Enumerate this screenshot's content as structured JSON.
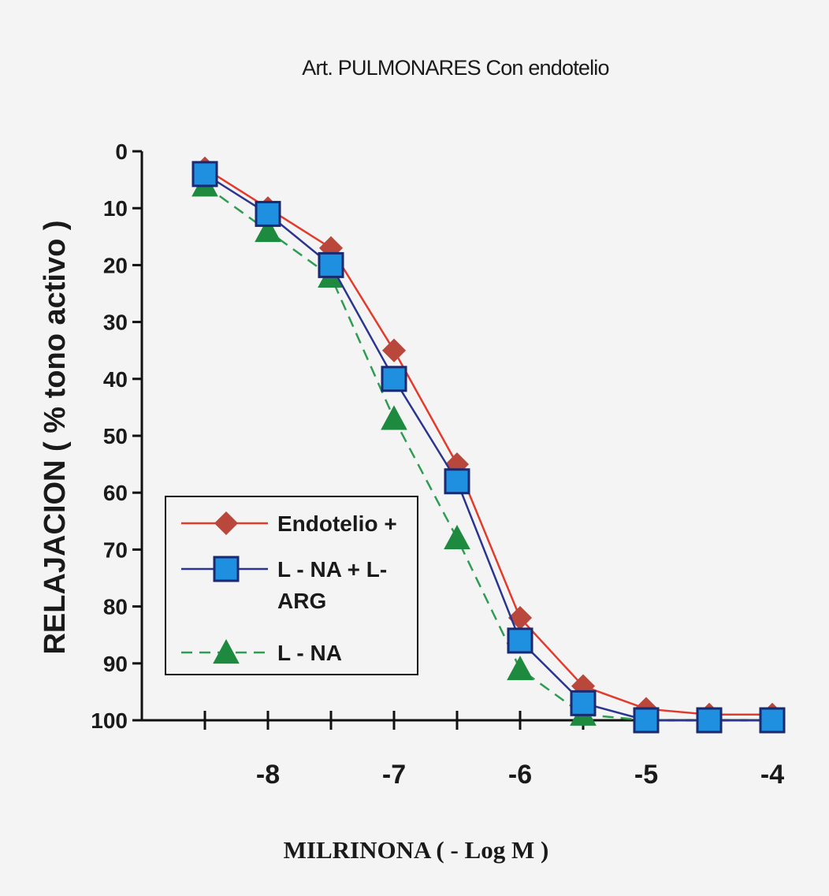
{
  "chart_data": {
    "type": "line",
    "title": "Art. PULMONARES Con endotelio",
    "xlabel": "MILRINONA ( - Log M )",
    "ylabel": "RELAJACION ( %  tono activo )",
    "x": [
      -8.5,
      -8,
      -7.5,
      -7,
      -6.5,
      -6,
      -5.5,
      -5,
      -4.5,
      -4
    ],
    "xlim": [
      -9,
      -4
    ],
    "ylim": [
      0,
      100
    ],
    "y_inverted": true,
    "grid": false,
    "legend_position": "lower-left",
    "x_tick_values": [
      -8,
      -7,
      -6,
      -5,
      -4
    ],
    "x_tick_labels": [
      "-8",
      "-7",
      "-6",
      "-5",
      "-4"
    ],
    "y_tick_values": [
      0,
      10,
      20,
      30,
      40,
      50,
      60,
      70,
      80,
      90,
      100
    ],
    "y_tick_labels": [
      "0",
      "10",
      "20",
      "30",
      "40",
      "50",
      "60",
      "70",
      "80",
      "90",
      "100"
    ],
    "series": [
      {
        "name": "Endotelio +",
        "marker": "diamond",
        "line_style": "solid",
        "line_color": "#e23b2c",
        "marker_color": "#b9473c",
        "values": [
          3,
          10,
          17,
          35,
          55,
          82,
          94,
          98,
          99,
          99
        ]
      },
      {
        "name": "L - NA + L-\nARG",
        "marker": "square",
        "line_style": "solid",
        "line_color": "#2a3590",
        "marker_color": "#1f8fe0",
        "values": [
          4,
          11,
          20,
          40,
          58,
          86,
          97,
          100,
          100,
          100
        ]
      },
      {
        "name": "L - NA",
        "marker": "triangle",
        "line_style": "dashed",
        "line_color": "#2e9c52",
        "marker_color": "#1e8a3f",
        "values": [
          6,
          14,
          22,
          47,
          68,
          91,
          99,
          100,
          100,
          100
        ]
      }
    ]
  }
}
